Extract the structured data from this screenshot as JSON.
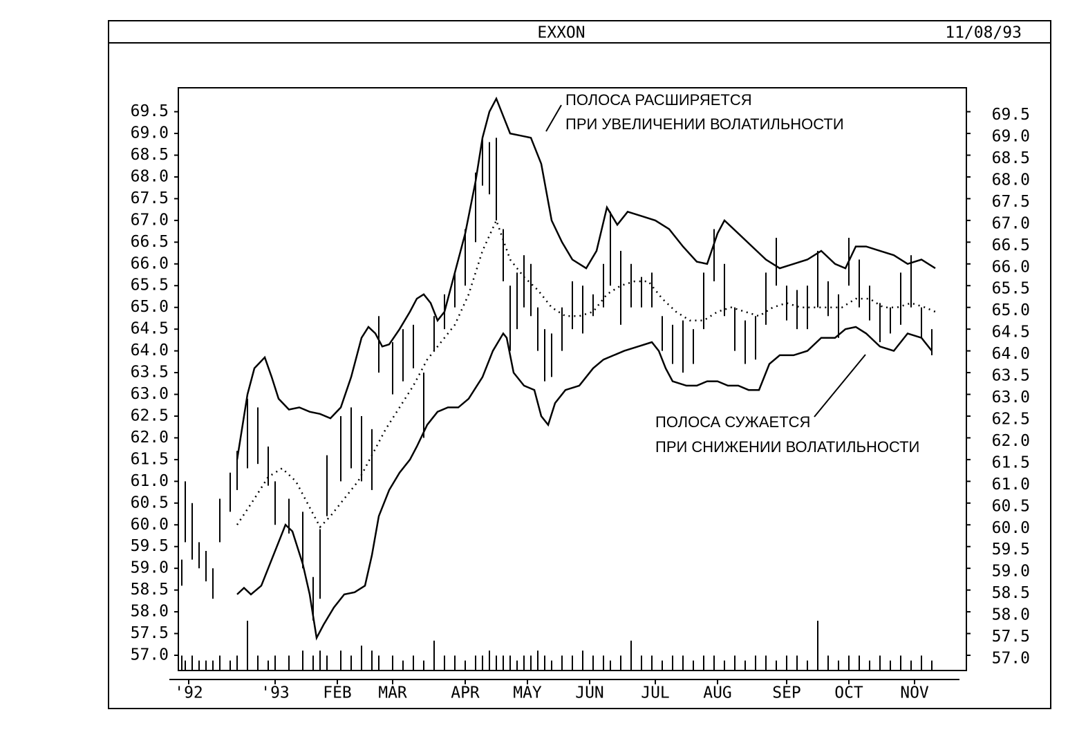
{
  "chart_data": {
    "type": "bollinger",
    "title": "EXXON",
    "date": "11/08/93",
    "annotations": [
      [
        "ПОЛОСА РАСШИРЯЕТСЯ",
        "ПРИ УВЕЛИЧЕНИИ ВОЛАТИЛЬНОСТИ"
      ],
      [
        "ПОЛОСА СУЖАЕТСЯ",
        "ПРИ СНИЖЕНИИ ВОЛАТИЛЬНОСТИ"
      ]
    ],
    "xlim": [
      0,
      228
    ],
    "xticks": [
      {
        "value": 3,
        "label": "'92"
      },
      {
        "value": 28,
        "label": "'93"
      },
      {
        "value": 46,
        "label": "FEB"
      },
      {
        "value": 62,
        "label": "MAR"
      },
      {
        "value": 83,
        "label": "APR"
      },
      {
        "value": 101,
        "label": "MAY"
      },
      {
        "value": 119,
        "label": "JUN"
      },
      {
        "value": 138,
        "label": "JUL"
      },
      {
        "value": 156,
        "label": "AUG"
      },
      {
        "value": 176,
        "label": "SEP"
      },
      {
        "value": 194,
        "label": "OCT"
      },
      {
        "value": 213,
        "label": "NOV"
      }
    ],
    "ylim": [
      56.65,
      70.05
    ],
    "yticks": [
      {
        "value": 57,
        "label": "57.0"
      },
      57.5,
      {
        "value": 58,
        "label": "58.0"
      },
      58.5,
      {
        "value": 59,
        "label": "59.0"
      },
      59.5,
      {
        "value": 60,
        "label": "60.0"
      },
      60.5,
      {
        "value": 61,
        "label": "61.0"
      },
      61.5,
      {
        "value": 62,
        "label": "62.0"
      },
      62.5,
      {
        "value": 63,
        "label": "63.0"
      },
      63.5,
      {
        "value": 64,
        "label": "64.0"
      },
      64.5,
      {
        "value": 65,
        "label": "65.0"
      },
      65.5,
      {
        "value": 66,
        "label": "66.0"
      },
      66.5,
      {
        "value": 67,
        "label": "67.0"
      },
      67.5,
      {
        "value": 68,
        "label": "68.0"
      },
      68.5,
      {
        "value": 69,
        "label": "69.0"
      },
      69.5
    ],
    "color": "#000000",
    "upper": {
      "x": [
        17,
        20,
        22,
        25,
        27,
        29,
        32,
        35,
        38,
        41,
        44,
        47,
        50,
        53,
        55,
        57,
        59,
        61,
        64,
        67,
        69,
        71,
        73,
        75,
        77,
        80,
        83,
        86,
        88,
        90,
        92,
        94,
        96,
        99,
        102,
        105,
        108,
        111,
        114,
        118,
        121,
        124,
        127,
        130,
        134,
        138,
        142,
        146,
        150,
        153,
        156,
        158,
        162,
        166,
        170,
        174,
        178,
        182,
        186,
        190,
        193,
        196,
        199,
        203,
        207,
        211,
        215,
        219
      ],
      "values": [
        61.5,
        63.0,
        63.6,
        63.85,
        63.4,
        62.9,
        62.65,
        62.7,
        62.6,
        62.55,
        62.45,
        62.7,
        63.4,
        64.3,
        64.55,
        64.4,
        64.1,
        64.15,
        64.5,
        64.9,
        65.2,
        65.3,
        65.1,
        64.7,
        64.9,
        65.8,
        66.7,
        67.9,
        68.9,
        69.5,
        69.8,
        69.4,
        69.0,
        68.95,
        68.9,
        68.3,
        67.0,
        66.5,
        66.1,
        65.9,
        66.3,
        67.3,
        66.9,
        67.2,
        67.1,
        67.0,
        66.8,
        66.4,
        66.05,
        66.0,
        66.7,
        67.0,
        66.7,
        66.4,
        66.1,
        65.9,
        66.0,
        66.1,
        66.3,
        66.0,
        65.9,
        66.4,
        66.4,
        66.3,
        66.2,
        66.0,
        66.1,
        65.9
      ]
    },
    "lower": {
      "x": [
        17,
        19,
        21,
        24,
        27,
        30,
        31,
        33,
        36,
        38,
        40,
        42,
        45,
        48,
        51,
        54,
        56,
        58,
        61,
        64,
        67,
        69,
        72,
        75,
        78,
        81,
        84,
        88,
        91,
        94,
        95,
        97,
        100,
        103,
        105,
        107,
        109,
        112,
        116,
        120,
        123,
        126,
        129,
        133,
        137,
        139,
        141,
        143,
        147,
        150,
        153,
        156,
        159,
        162,
        165,
        168,
        171,
        174,
        178,
        182,
        186,
        190,
        193,
        196,
        199,
        203,
        207,
        211,
        215,
        218
      ],
      "values": [
        58.4,
        58.55,
        58.4,
        58.6,
        59.2,
        59.8,
        60.0,
        59.85,
        59.1,
        58.4,
        57.4,
        57.7,
        58.1,
        58.4,
        58.45,
        58.6,
        59.3,
        60.2,
        60.8,
        61.2,
        61.5,
        61.8,
        62.3,
        62.6,
        62.7,
        62.7,
        62.9,
        63.4,
        64.0,
        64.4,
        64.3,
        63.5,
        63.2,
        63.1,
        62.5,
        62.3,
        62.8,
        63.1,
        63.2,
        63.6,
        63.8,
        63.9,
        64.0,
        64.1,
        64.2,
        64.0,
        63.6,
        63.3,
        63.2,
        63.2,
        63.3,
        63.3,
        63.2,
        63.2,
        63.1,
        63.1,
        63.7,
        63.9,
        63.9,
        64.0,
        64.3,
        64.3,
        64.5,
        64.55,
        64.4,
        64.1,
        64.0,
        64.4,
        64.3,
        64.0
      ]
    },
    "middle": {
      "x": [
        17,
        22,
        26,
        30,
        34,
        38,
        41,
        44,
        48,
        52,
        56,
        60,
        64,
        68,
        72,
        76,
        80,
        84,
        88,
        92,
        96,
        100,
        104,
        108,
        112,
        116,
        120,
        124,
        128,
        132,
        136,
        140,
        144,
        148,
        152,
        156,
        160,
        164,
        168,
        172,
        176,
        180,
        184,
        188,
        192,
        196,
        200,
        204,
        208,
        212,
        216,
        219
      ],
      "values": [
        60.0,
        60.6,
        61.1,
        61.3,
        61.0,
        60.4,
        59.95,
        60.2,
        60.6,
        61.0,
        61.6,
        62.2,
        62.7,
        63.2,
        63.8,
        64.2,
        64.6,
        65.3,
        66.3,
        67.0,
        66.1,
        65.7,
        65.4,
        65.0,
        64.8,
        64.8,
        64.9,
        65.3,
        65.5,
        65.6,
        65.6,
        65.2,
        64.9,
        64.7,
        64.7,
        64.9,
        65.0,
        64.9,
        64.8,
        65.0,
        65.1,
        65.0,
        65.0,
        65.0,
        65.0,
        65.2,
        65.2,
        65.0,
        65.0,
        65.1,
        65.0,
        64.9
      ]
    },
    "bars": {
      "x": [
        1,
        2,
        4,
        6,
        8,
        10,
        12,
        15,
        17,
        20,
        23,
        26,
        28,
        32,
        36,
        39,
        41,
        43,
        47,
        50,
        53,
        56,
        58,
        62,
        65,
        68,
        71,
        74,
        77,
        80,
        83,
        86,
        88,
        90,
        92,
        94,
        96,
        98,
        100,
        102,
        104,
        106,
        108,
        111,
        114,
        117,
        120,
        123,
        125,
        128,
        131,
        134,
        137,
        140,
        143,
        146,
        149,
        152,
        155,
        158,
        161,
        164,
        167,
        170,
        173,
        176,
        179,
        182,
        185,
        188,
        191,
        194,
        197,
        200,
        203,
        206,
        209,
        212,
        215,
        218
      ],
      "low": [
        58.6,
        59.6,
        59.2,
        59.0,
        58.7,
        58.3,
        59.6,
        60.3,
        60.8,
        61.3,
        61.4,
        60.9,
        60.0,
        59.8,
        59.0,
        57.8,
        58.3,
        60.2,
        61.0,
        61.3,
        61.0,
        60.8,
        63.5,
        63.0,
        63.3,
        63.6,
        62.0,
        64.0,
        64.5,
        65.0,
        65.5,
        66.5,
        67.8,
        67.6,
        67.0,
        65.6,
        64.0,
        64.5,
        65.0,
        64.8,
        64.0,
        63.3,
        63.4,
        64.0,
        64.5,
        64.4,
        64.8,
        65.0,
        65.5,
        64.6,
        65.0,
        65.0,
        65.0,
        64.0,
        63.7,
        63.5,
        63.7,
        64.5,
        65.6,
        64.8,
        64.0,
        63.7,
        63.8,
        64.6,
        65.5,
        64.7,
        64.5,
        64.5,
        65.0,
        64.8,
        64.3,
        65.5,
        65.0,
        64.7,
        64.2,
        64.4,
        64.6,
        65.0,
        64.3,
        63.9
      ],
      "high": [
        59.2,
        61.0,
        60.5,
        59.6,
        59.4,
        59.0,
        60.6,
        61.2,
        61.7,
        62.9,
        62.7,
        61.8,
        61.0,
        60.6,
        60.3,
        58.8,
        59.9,
        61.6,
        62.5,
        62.7,
        62.5,
        62.2,
        64.8,
        64.2,
        64.5,
        64.6,
        63.5,
        64.8,
        65.3,
        65.8,
        66.8,
        68.1,
        68.9,
        68.8,
        68.9,
        66.8,
        65.5,
        65.8,
        66.2,
        66.0,
        65.0,
        64.5,
        64.4,
        65.0,
        65.6,
        65.5,
        65.3,
        66.0,
        67.2,
        66.3,
        66.0,
        65.7,
        65.8,
        64.8,
        64.6,
        64.7,
        64.5,
        65.8,
        66.8,
        66.0,
        65.0,
        64.7,
        64.8,
        65.8,
        66.6,
        65.5,
        65.4,
        65.5,
        66.3,
        65.6,
        65.3,
        66.6,
        66.1,
        65.5,
        65.1,
        65.0,
        65.8,
        66.2,
        65.0,
        64.5
      ],
      "volume": [
        3,
        2,
        3,
        2,
        2,
        2,
        3,
        2,
        3,
        10,
        3,
        2,
        3,
        3,
        4,
        3,
        4,
        3,
        4,
        3,
        5,
        4,
        3,
        3,
        2,
        3,
        2,
        6,
        3,
        3,
        2,
        3,
        3,
        4,
        3,
        3,
        3,
        2,
        3,
        3,
        4,
        3,
        2,
        3,
        3,
        4,
        3,
        3,
        2,
        3,
        6,
        3,
        3,
        2,
        3,
        3,
        2,
        3,
        3,
        2,
        3,
        2,
        3,
        3,
        2,
        3,
        3,
        2,
        10,
        3,
        2,
        3,
        3,
        2,
        3,
        2,
        3,
        2,
        3,
        2
      ]
    }
  }
}
